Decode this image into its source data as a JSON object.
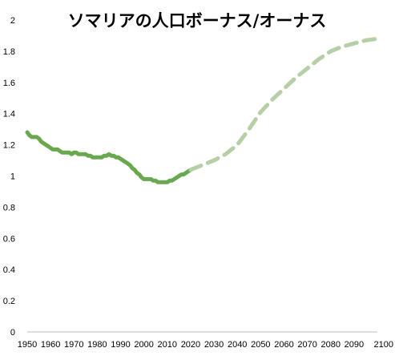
{
  "chart_data": {
    "type": "line",
    "title": "ソマリアの人口ボーナス/オーナス",
    "xlabel": "",
    "ylabel": "",
    "xlim": [
      1950,
      2100
    ],
    "ylim": [
      0,
      2
    ],
    "grid": false,
    "x_ticks": [
      "1950",
      "1960",
      "1970",
      "1980",
      "1990",
      "2000",
      "2010",
      "2020",
      "2030",
      "2040",
      "2050",
      "2060",
      "2070",
      "2080",
      "2090",
      "2100"
    ],
    "y_ticks": [
      "0",
      "0.2",
      "0.4",
      "0.6",
      "0.8",
      "1",
      "1.2",
      "1.4",
      "1.6",
      "1.8",
      "2"
    ],
    "colors": {
      "estimate": "#6aa84f",
      "projection": "#b6cfa6"
    },
    "series": [
      {
        "style": "solid",
        "x": [
          1950,
          1951,
          1952,
          1953,
          1954,
          1955,
          1956,
          1957,
          1958,
          1959,
          1960,
          1961,
          1962,
          1963,
          1964,
          1965,
          1966,
          1967,
          1968,
          1969,
          1970,
          1971,
          1972,
          1973,
          1974,
          1975,
          1976,
          1977,
          1978,
          1979,
          1980,
          1981,
          1982,
          1983,
          1984,
          1985,
          1986,
          1987,
          1988,
          1989,
          1990,
          1991,
          1992,
          1993,
          1994,
          1995,
          1996,
          1997,
          1998,
          1999,
          2000,
          2001,
          2002,
          2003,
          2004,
          2005,
          2006,
          2007,
          2008,
          2009,
          2010,
          2011,
          2012,
          2013,
          2014,
          2015,
          2016,
          2017,
          2018,
          2019,
          2020
        ],
        "values": [
          1.28,
          1.26,
          1.25,
          1.25,
          1.25,
          1.24,
          1.22,
          1.21,
          1.2,
          1.19,
          1.18,
          1.17,
          1.17,
          1.17,
          1.16,
          1.15,
          1.15,
          1.15,
          1.15,
          1.14,
          1.15,
          1.15,
          1.14,
          1.14,
          1.14,
          1.14,
          1.13,
          1.13,
          1.12,
          1.12,
          1.12,
          1.12,
          1.12,
          1.13,
          1.13,
          1.14,
          1.13,
          1.13,
          1.12,
          1.12,
          1.11,
          1.1,
          1.09,
          1.08,
          1.07,
          1.05,
          1.04,
          1.02,
          1.01,
          0.99,
          0.98,
          0.98,
          0.98,
          0.98,
          0.97,
          0.97,
          0.96,
          0.96,
          0.96,
          0.96,
          0.96,
          0.97,
          0.97,
          0.98,
          0.99,
          1.0,
          1.01,
          1.01,
          1.02,
          1.03,
          1.04
        ]
      },
      {
        "style": "dashed",
        "x": [
          2020,
          2025,
          2030,
          2035,
          2040,
          2045,
          2050,
          2055,
          2060,
          2065,
          2070,
          2075,
          2080,
          2085,
          2090,
          2095,
          2100
        ],
        "values": [
          1.04,
          1.07,
          1.1,
          1.14,
          1.2,
          1.3,
          1.41,
          1.49,
          1.56,
          1.63,
          1.69,
          1.75,
          1.8,
          1.83,
          1.85,
          1.87,
          1.88
        ]
      }
    ]
  }
}
